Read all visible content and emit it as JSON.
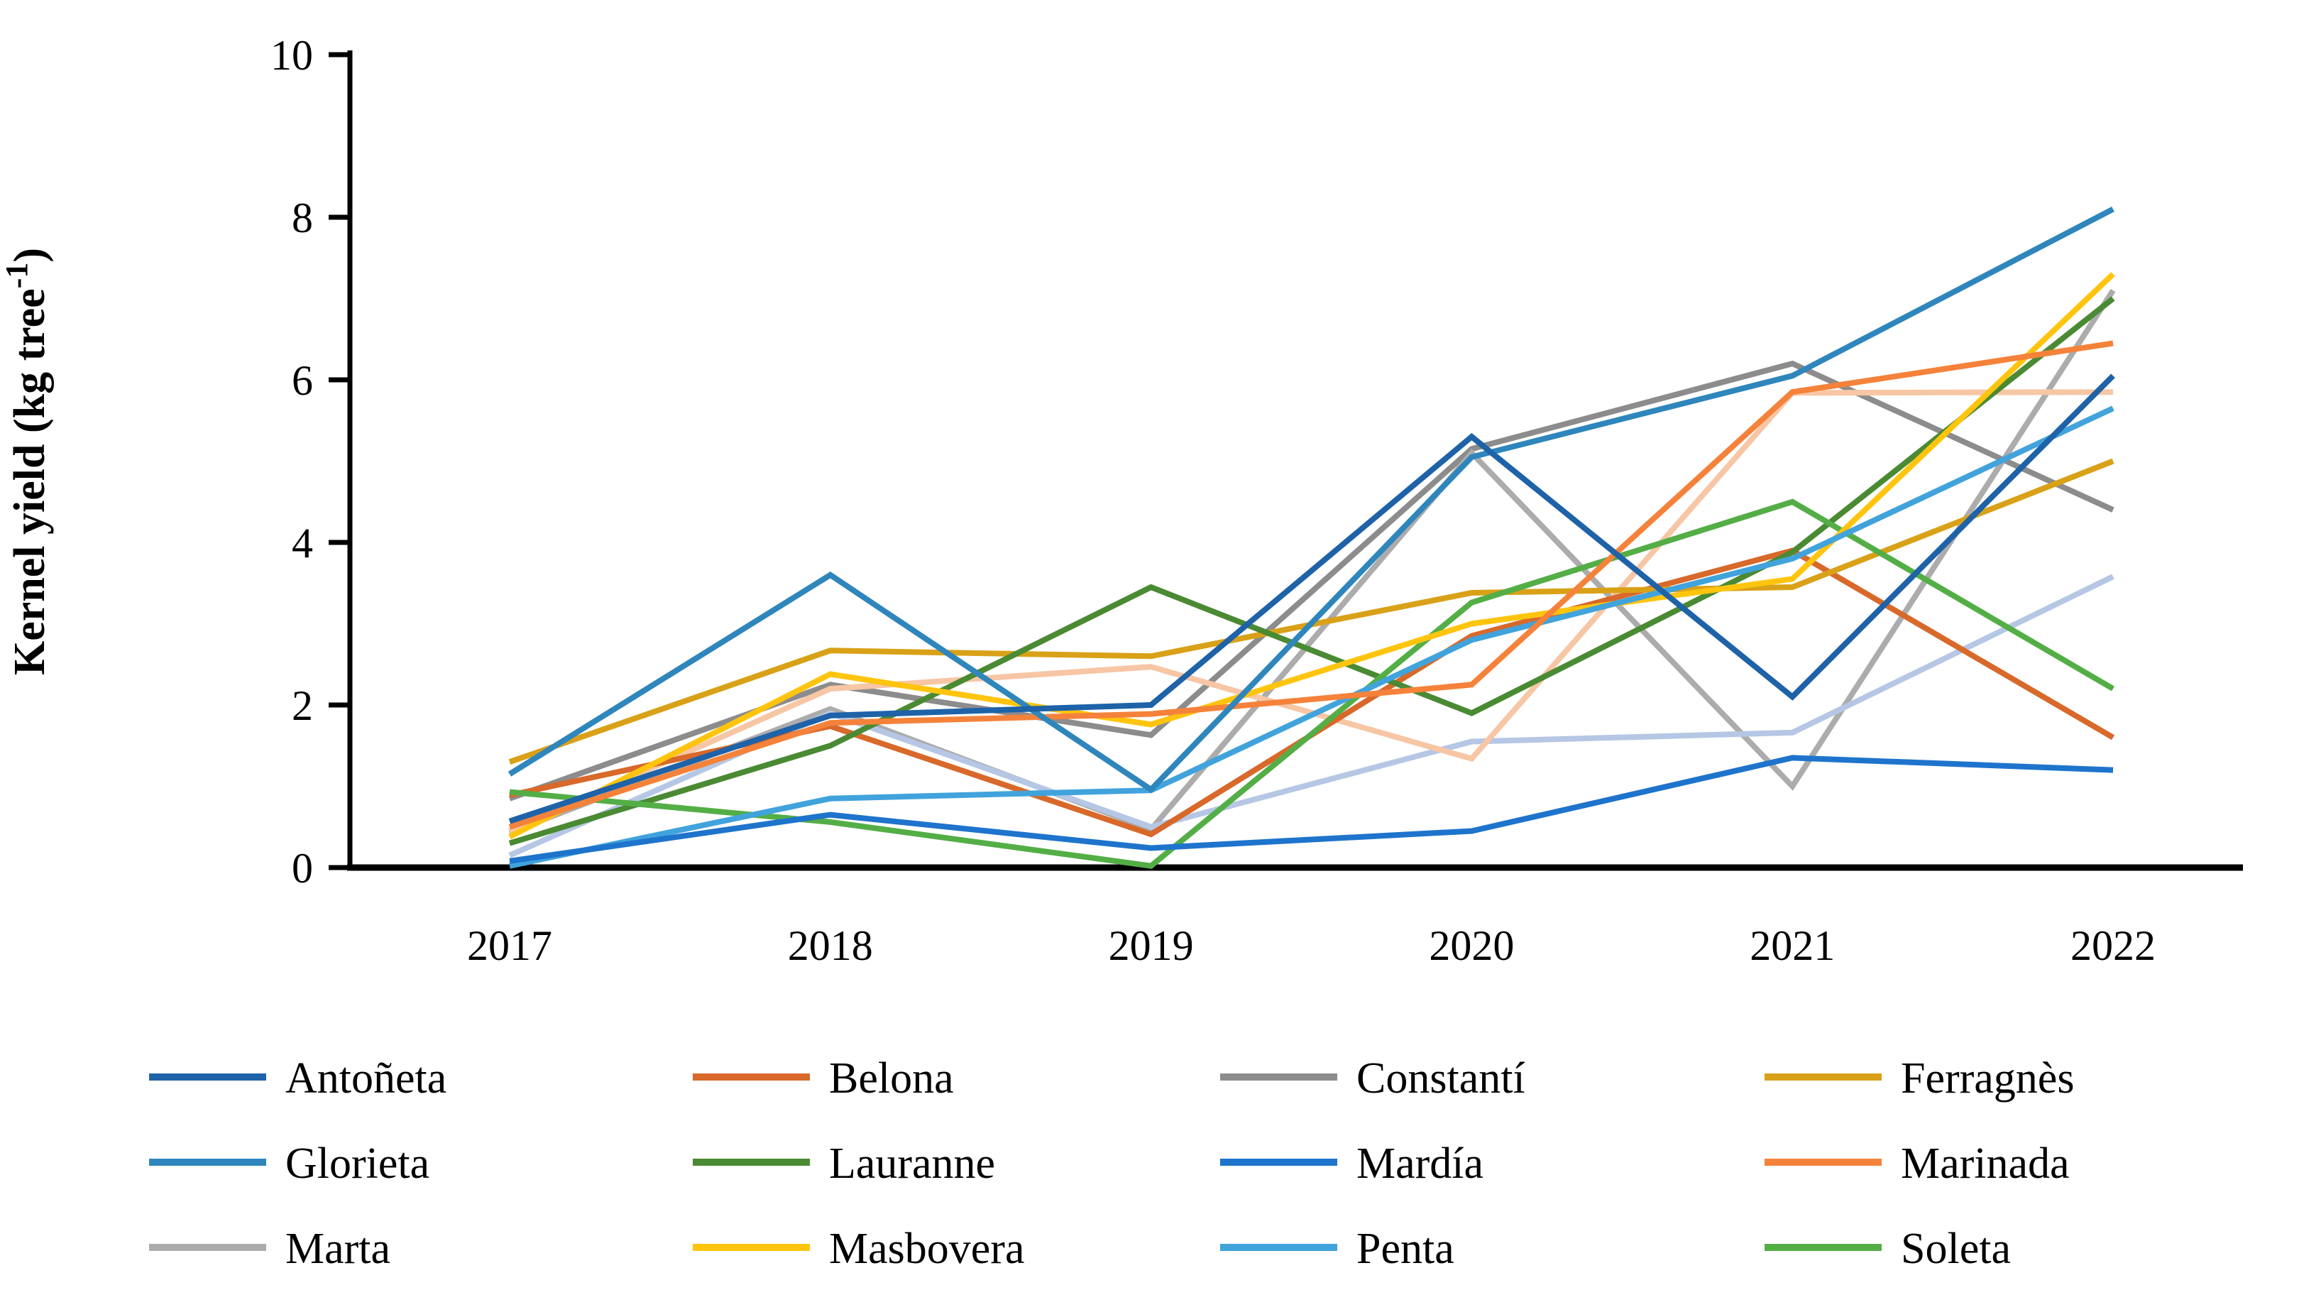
{
  "chart_data": {
    "type": "line",
    "title": "",
    "categories": [
      "2017",
      "2018",
      "2019",
      "2020",
      "2021",
      "2022"
    ],
    "xlabel": "",
    "ylabel": "Kernel yield (kg tree⁻¹)",
    "ylabel_parts": {
      "base": "Kernel yield (kg tree",
      "sup": "-1",
      "close": ")"
    },
    "ylim": [
      0,
      10
    ],
    "yticks": [
      "0",
      "2",
      "4",
      "6",
      "8",
      "10"
    ],
    "grid": false,
    "legend_position": "bottom",
    "axis_color": "#000000",
    "series": [
      {
        "name": "Antoñeta",
        "color": "#1E62A8",
        "in_legend": true,
        "values": [
          0.57,
          1.87,
          2.0,
          5.3,
          2.1,
          6.05
        ]
      },
      {
        "name": "Belona",
        "color": "#D8692A",
        "in_legend": true,
        "values": [
          0.89,
          1.74,
          0.41,
          2.85,
          3.9,
          1.6
        ]
      },
      {
        "name": "Constantí",
        "color": "#8C8C8C",
        "in_legend": true,
        "values": [
          0.85,
          2.25,
          1.63,
          5.15,
          6.2,
          4.4
        ]
      },
      {
        "name": "Ferragnès",
        "color": "#D9A118",
        "in_legend": true,
        "values": [
          1.3,
          2.67,
          2.6,
          3.38,
          3.45,
          5.0
        ]
      },
      {
        "name": "Glorieta",
        "color": "#2E86BC",
        "in_legend": true,
        "values": [
          1.15,
          3.6,
          0.96,
          5.05,
          6.05,
          8.1
        ]
      },
      {
        "name": "Lauranne",
        "color": "#4A8A33",
        "in_legend": true,
        "values": [
          0.3,
          1.5,
          3.45,
          1.9,
          3.88,
          7.0
        ]
      },
      {
        "name": "Mardía",
        "color": "#1E74CC",
        "in_legend": true,
        "values": [
          0.08,
          0.65,
          0.24,
          0.45,
          1.35,
          1.2
        ]
      },
      {
        "name": "Marinada",
        "color": "#F5823A",
        "in_legend": true,
        "values": [
          0.5,
          1.78,
          1.89,
          2.25,
          5.85,
          6.45
        ]
      },
      {
        "name": "Marta",
        "color": "#ACACAC",
        "in_legend": true,
        "values": [
          0.43,
          1.95,
          0.47,
          5.1,
          1.0,
          7.1
        ]
      },
      {
        "name": "Masbovera",
        "color": "#FFC40D",
        "in_legend": true,
        "values": [
          0.38,
          2.38,
          1.76,
          3.0,
          3.55,
          7.3
        ]
      },
      {
        "name": "Penta",
        "color": "#41A3DC",
        "in_legend": true,
        "values": [
          0.02,
          0.85,
          0.95,
          2.8,
          3.8,
          5.65
        ]
      },
      {
        "name": "Soleta",
        "color": "#53AE46",
        "in_legend": true,
        "values": [
          0.93,
          0.56,
          0.02,
          3.26,
          4.5,
          2.2
        ]
      },
      {
        "name": "unlabeled-light-orange",
        "color": "#F7C6A5",
        "in_legend": false,
        "values": [
          0.45,
          2.2,
          2.47,
          1.34,
          5.84,
          5.85
        ]
      },
      {
        "name": "unlabeled-light-blue",
        "color": "#B5C7E4",
        "in_legend": false,
        "values": [
          0.15,
          1.9,
          0.5,
          1.55,
          1.66,
          3.58
        ]
      }
    ],
    "notes": "Two pale lines (light orange, light blue) appear in the plot area without corresponding legend entries."
  }
}
